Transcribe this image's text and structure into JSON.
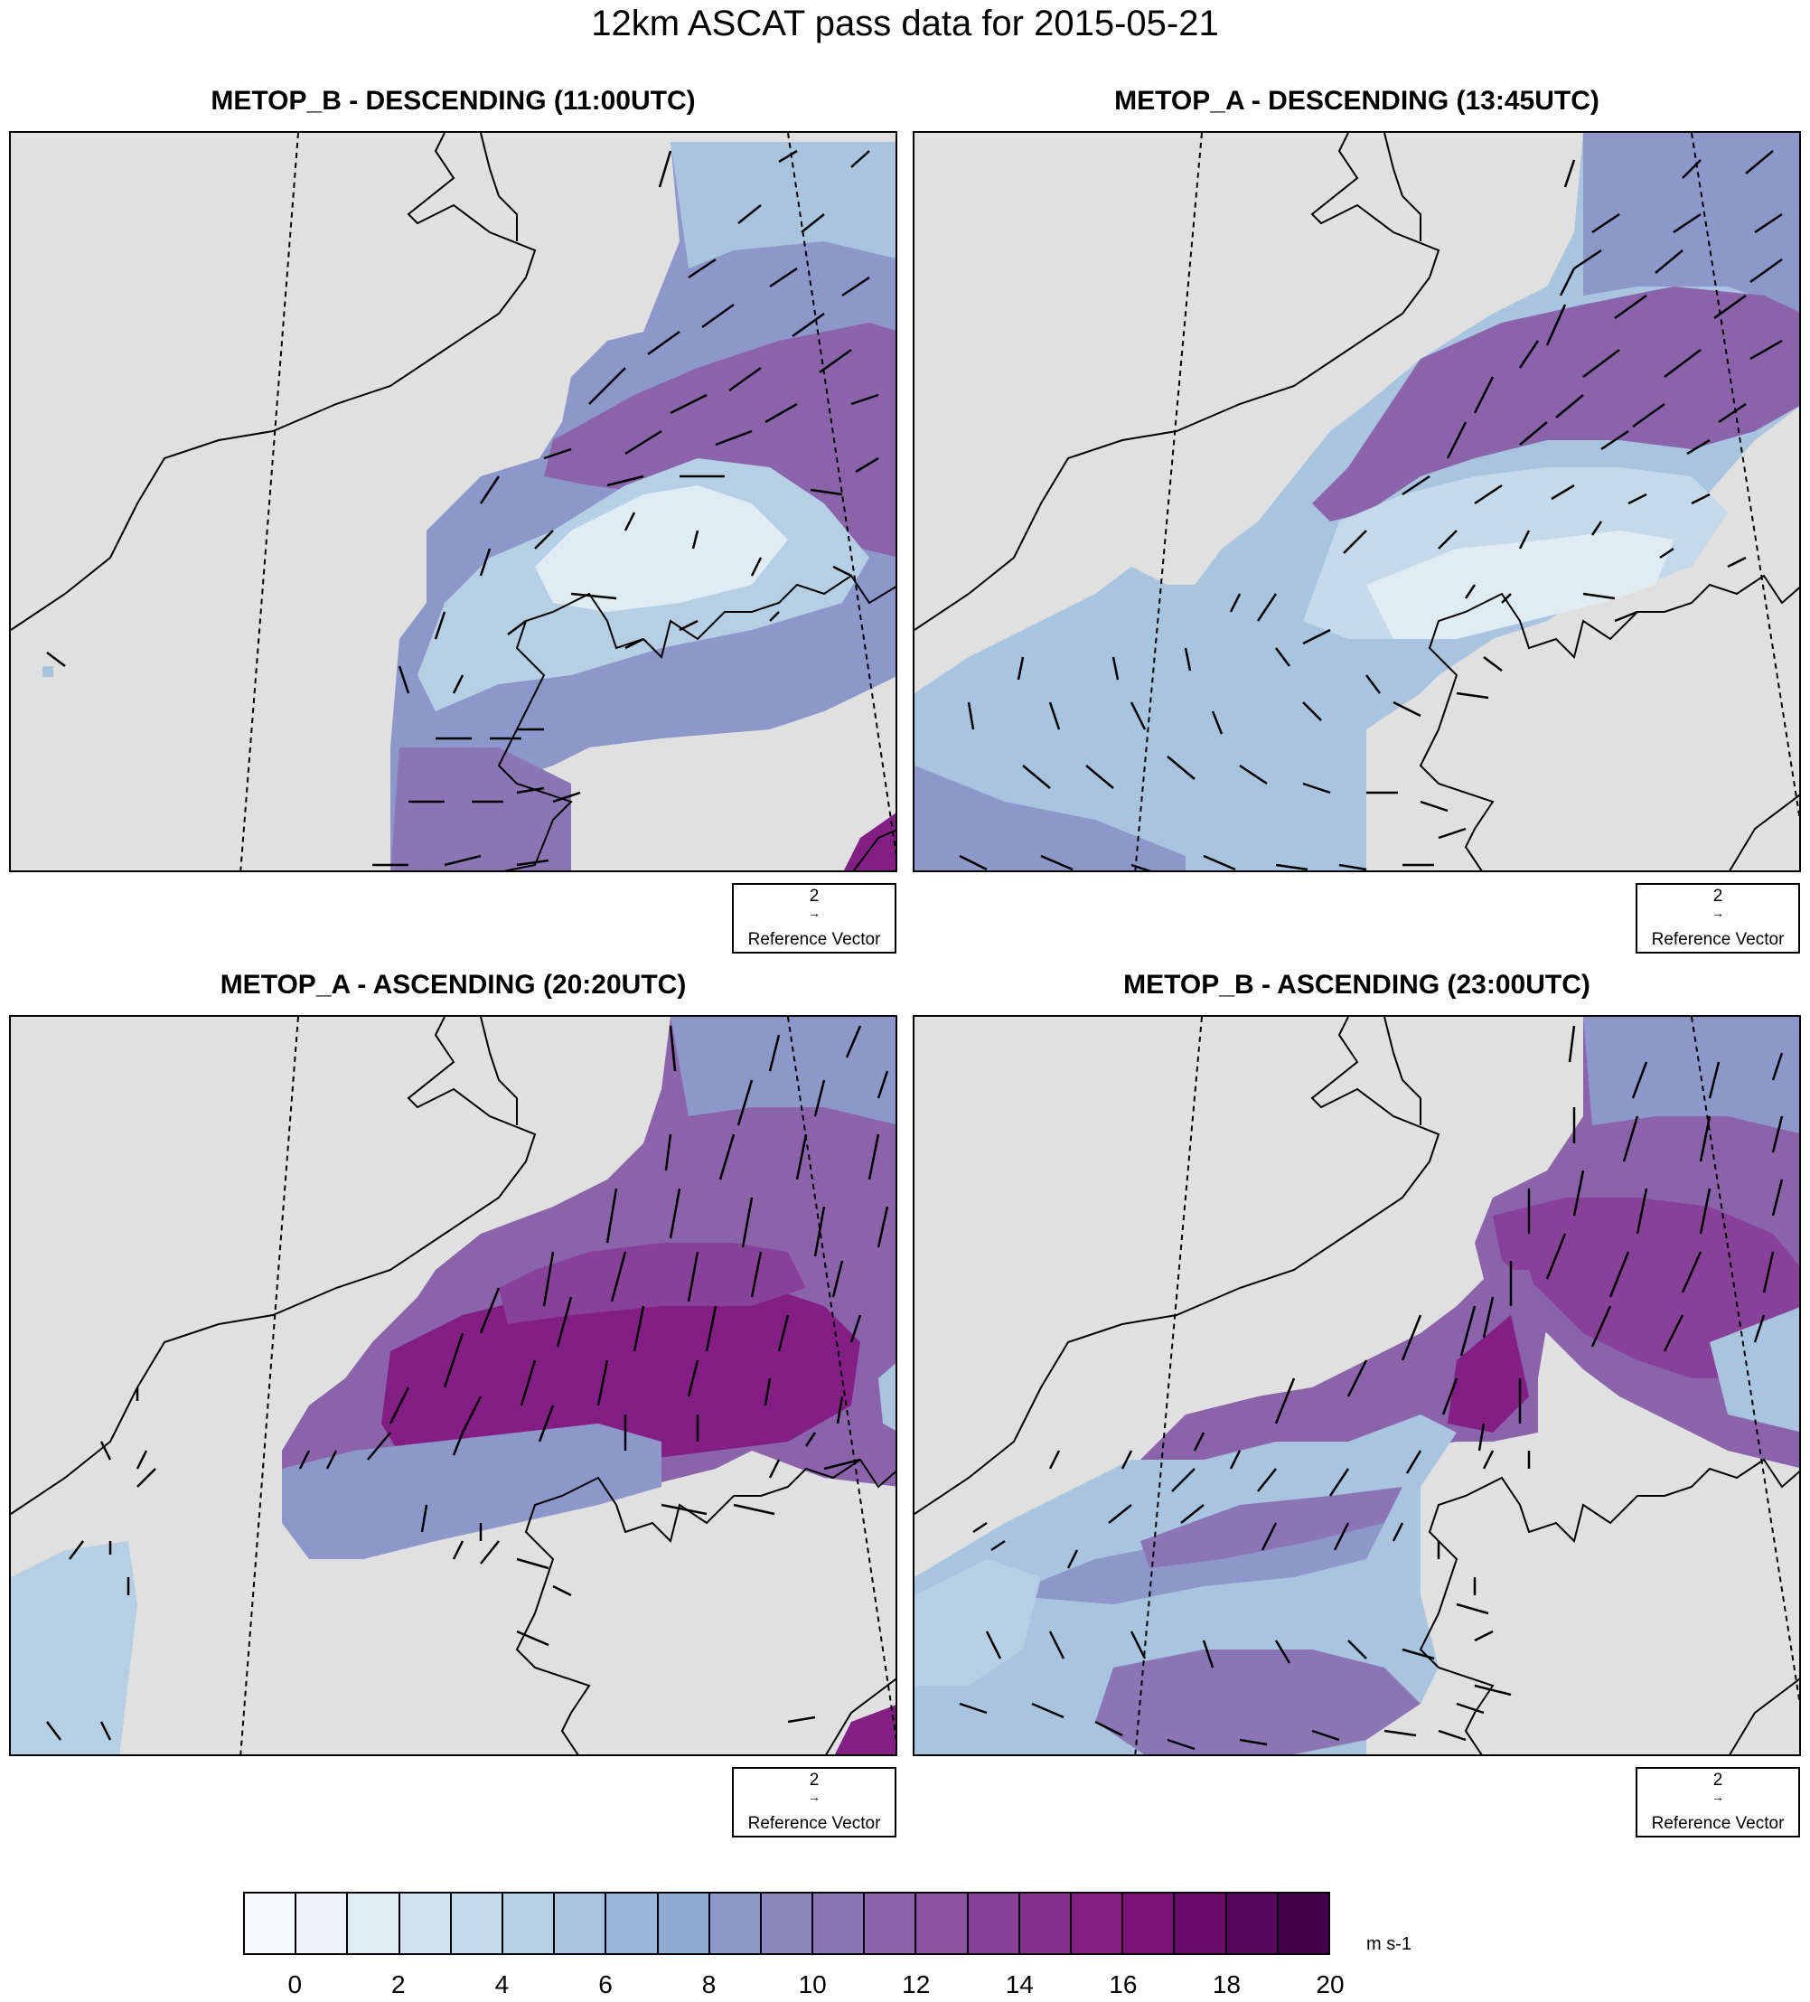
{
  "title": "12km ASCAT pass data for 2015-05-21",
  "panels": [
    {
      "title": "METOP_B - DESCENDING (11:00UTC)",
      "ref_value": "2",
      "ref_label": "Reference Vector"
    },
    {
      "title": "METOP_A - DESCENDING (13:45UTC)",
      "ref_value": "2",
      "ref_label": "Reference Vector"
    },
    {
      "title": "METOP_A - ASCENDING (20:20UTC)",
      "ref_value": "2",
      "ref_label": "Reference Vector"
    },
    {
      "title": "METOP_B - ASCENDING (23:00UTC)",
      "ref_value": "2",
      "ref_label": "Reference Vector"
    }
  ],
  "colorbar": {
    "unit": "m s-1",
    "ticks": [
      "0",
      "2",
      "4",
      "6",
      "8",
      "10",
      "12",
      "14",
      "16",
      "18",
      "20"
    ],
    "colors": [
      "#f5fafc",
      "#ebf3f8",
      "#e0ecf4",
      "#d2e3ef",
      "#c4d9ea",
      "#b6cfe5",
      "#a8c4df",
      "#9ab8d9",
      "#8fabd3",
      "#8d97c9",
      "#8c86bf",
      "#8c75b5",
      "#8b63ab",
      "#8a52a1",
      "#884198",
      "#86308e",
      "#831f84",
      "#7c1279",
      "#6b0a6b",
      "#58055e",
      "#44004d"
    ]
  },
  "map_style": {
    "land": "#e0e0e0",
    "coast": "#000000",
    "wind_arrows": "#000000"
  }
}
